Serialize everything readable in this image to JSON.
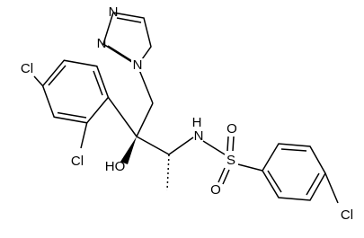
{
  "atoms": {
    "cl_para": "Cl",
    "cl_ortho": "Cl",
    "n_top": "N",
    "n_left": "N",
    "n_attach": "N",
    "hydroxyl": "HO",
    "amine_n": "N",
    "amine_h": "H",
    "sulfur": "S",
    "oxygen_top": "O",
    "oxygen_bottom": "O",
    "cl_aryl": "Cl"
  }
}
